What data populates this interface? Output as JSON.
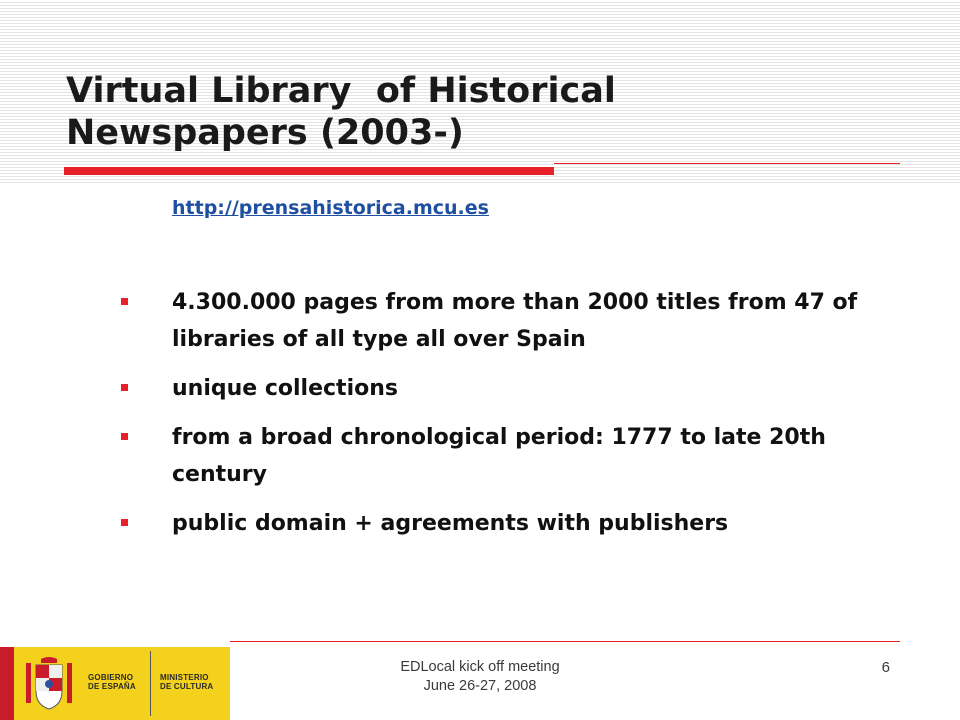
{
  "slide": {
    "title_line1": "Virtual Library  of Historical",
    "title_line2": "Newspapers (2003-)",
    "url": "http://prensahistorica.mcu.es",
    "bullets": [
      "4.300.000 pages from more than 2000 titles from 47 of libraries of all type all over Spain",
      "unique collections",
      "from a broad chronological period: 1777 to late 20th century",
      "public domain + agreements with publishers"
    ]
  },
  "footer": {
    "line1": "EDLocal kick off meeting",
    "line2": "June 26-27, 2008",
    "page_number": "6"
  },
  "logo": {
    "gov_line1": "GOBIERNO",
    "gov_line2": "DE ESPAÑA",
    "min_line1": "MINISTERIO",
    "min_line2": "DE CULTURA"
  },
  "colors": {
    "accent": "#e8202a",
    "link": "#1f4fa0",
    "logo_yellow": "#f4d11c"
  }
}
